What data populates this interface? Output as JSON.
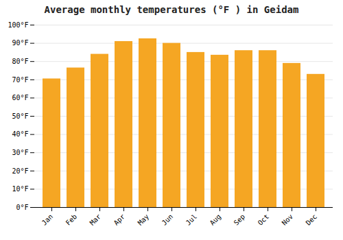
{
  "chart_data": {
    "type": "bar",
    "title": "Average monthly temperatures (°F ) in Geidam",
    "categories": [
      "Jan",
      "Feb",
      "Mar",
      "Apr",
      "May",
      "Jun",
      "Jul",
      "Aug",
      "Sep",
      "Oct",
      "Nov",
      "Dec"
    ],
    "values": [
      70.5,
      76.5,
      84,
      91,
      92.5,
      90,
      85,
      83.5,
      86,
      86,
      79,
      73
    ],
    "color": "#F5A623",
    "ylim": [
      0,
      100
    ],
    "yticks": [
      {
        "value": 0,
        "label": "0°F"
      },
      {
        "value": 10,
        "label": "10°F"
      },
      {
        "value": 20,
        "label": "20°F"
      },
      {
        "value": 30,
        "label": "30°F"
      },
      {
        "value": 40,
        "label": "40°F"
      },
      {
        "value": 50,
        "label": "50°F"
      },
      {
        "value": 60,
        "label": "60°F"
      },
      {
        "value": 70,
        "label": "70°F"
      },
      {
        "value": 80,
        "label": "80°F"
      },
      {
        "value": 90,
        "label": "90°F"
      },
      {
        "value": 100,
        "label": "100°F"
      }
    ],
    "grid": true
  }
}
